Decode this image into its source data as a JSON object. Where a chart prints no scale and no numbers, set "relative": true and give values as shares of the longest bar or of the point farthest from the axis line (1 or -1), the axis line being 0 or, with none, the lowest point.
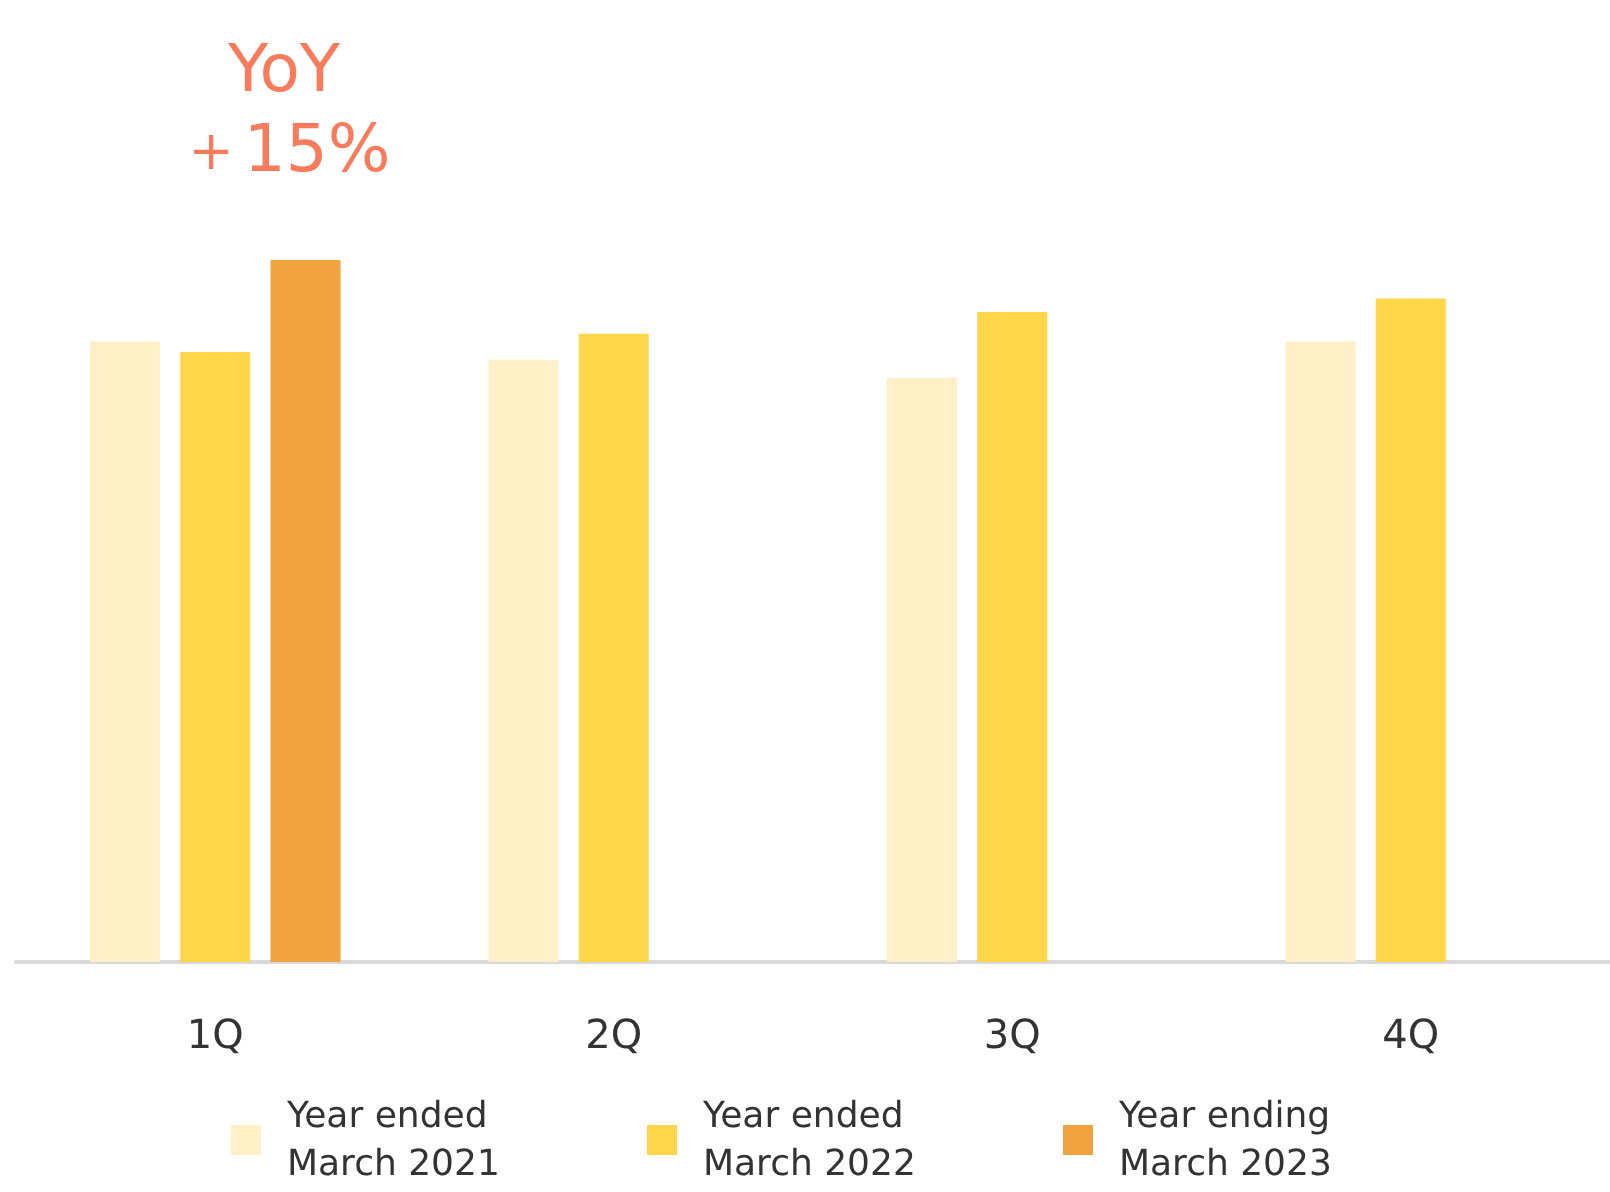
{
  "chart_data": {
    "type": "bar",
    "relative": true,
    "categories": [
      "1Q",
      "2Q",
      "3Q",
      "4Q"
    ],
    "series": [
      {
        "name": "Year ended March 2021",
        "color": "#fff0c8",
        "values": [
          0.884,
          0.858,
          0.832,
          0.884
        ]
      },
      {
        "name": "Year ended March 2022",
        "color": "#ffd54a",
        "values": [
          0.869,
          0.895,
          0.926,
          0.945
        ]
      },
      {
        "name": "Year ending March 2023",
        "color": "#f0a33e",
        "values": [
          1,
          null,
          null,
          null
        ]
      }
    ],
    "annotations": [
      "YoY\n＋15%"
    ],
    "legend": "bottom",
    "grid": false
  }
}
